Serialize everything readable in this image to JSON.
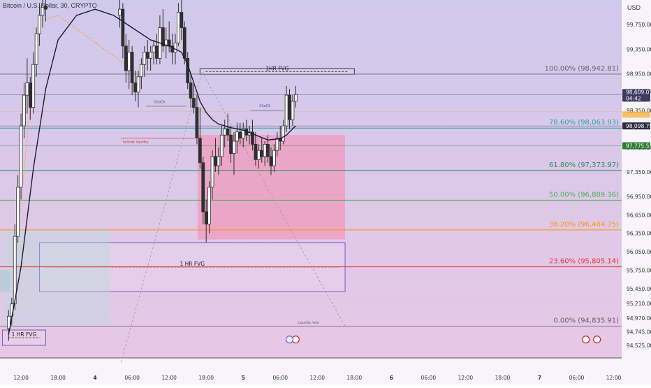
{
  "header": {
    "title": "Bitcoin / U.S. Dollar, 30, CRYPTO",
    "currency": "USD"
  },
  "chart_data": {
    "type": "candlestick",
    "title": "Bitcoin / U.S. Dollar, 30, CRYPTO",
    "y_axis_unit": "USD",
    "ylim": [
      94320,
      100150
    ],
    "grid": false,
    "y_ticks": [
      "99,750.00",
      "99,350.00",
      "98,950.00",
      "98,650.00",
      "98,350.00",
      "97,750.00",
      "97,350.00",
      "96,950.00",
      "96,650.00",
      "96,350.00",
      "96,050.00",
      "95,750.00",
      "95,450.00",
      "95,210.00",
      "94,970.00",
      "94,745.00",
      "94,525.00"
    ],
    "y_tick_values": [
      99750,
      99350,
      98950,
      98650,
      98350,
      97750,
      97350,
      96950,
      96650,
      96350,
      96050,
      95750,
      95450,
      95210,
      94970,
      94745,
      94525
    ],
    "x_ticks": [
      "12:00",
      "18:00",
      "4",
      "06:00",
      "12:00",
      "18:00",
      "5",
      "06:00",
      "12:00",
      "18:00",
      "6",
      "06:00",
      "12:00",
      "18:00",
      "7",
      "06:00",
      "12:00"
    ],
    "x_tick_hours": [
      12,
      18,
      24,
      30,
      36,
      42,
      48,
      54,
      60,
      66,
      72,
      78,
      84,
      90,
      96,
      102,
      108
    ],
    "fib_levels": [
      {
        "pct": "100.00%",
        "price": "98,942.81",
        "value": 98942.81,
        "color": "#7a7a88"
      },
      {
        "pct": "78.60%",
        "price": "98,063.93",
        "value": 98063.93,
        "color": "#26a69a"
      },
      {
        "pct": "61.80%",
        "price": "97,373.97",
        "value": 97373.97,
        "color": "#2e8b57"
      },
      {
        "pct": "50.00%",
        "price": "96,889.36",
        "value": 96889.36,
        "color": "#4caf50"
      },
      {
        "pct": "38.20%",
        "price": "96,404.75",
        "value": 96404.75,
        "color": "#ff9800"
      },
      {
        "pct": "23.60%",
        "price": "95,805.14",
        "value": 95805.14,
        "color": "#e53935"
      },
      {
        "pct": "0.00%",
        "price": "94,835.91",
        "value": 94835.91,
        "color": "#7a7a88"
      }
    ],
    "price_badges": [
      {
        "line1": "98,609.01",
        "line2": "04:42",
        "value": 98609.01,
        "color": "#3d3a60"
      },
      {
        "line1": "98,098.79",
        "line2": "",
        "value": 98098.79,
        "color": "#2a2a3e"
      },
      {
        "line1": "97,775.53",
        "line2": "",
        "value": 97775.53,
        "color": "#2e7d32"
      }
    ],
    "annotations": [
      "1HR FVG",
      "1 HR FVG",
      "1 HR FVG",
      "ChoCh",
      "ChoCh",
      "Sellside liquidity",
      "Liquidity Void"
    ],
    "candles": [
      {
        "t": 10.0,
        "o": 94800,
        "h": 95100,
        "l": 94600,
        "c": 95000
      },
      {
        "t": 10.5,
        "o": 95000,
        "h": 95300,
        "l": 94850,
        "c": 95200
      },
      {
        "t": 11.0,
        "o": 95200,
        "h": 96500,
        "l": 95100,
        "c": 96300
      },
      {
        "t": 11.5,
        "o": 96300,
        "h": 97300,
        "l": 96200,
        "c": 97100
      },
      {
        "t": 12.0,
        "o": 97100,
        "h": 98300,
        "l": 96900,
        "c": 98100
      },
      {
        "t": 12.5,
        "o": 98100,
        "h": 98800,
        "l": 97900,
        "c": 98600
      },
      {
        "t": 13.0,
        "o": 98600,
        "h": 99200,
        "l": 98300,
        "c": 98800
      },
      {
        "t": 13.5,
        "o": 98800,
        "h": 98900,
        "l": 98200,
        "c": 98400
      },
      {
        "t": 14.0,
        "o": 98400,
        "h": 99300,
        "l": 98300,
        "c": 99100
      },
      {
        "t": 14.5,
        "o": 99100,
        "h": 99700,
        "l": 98900,
        "c": 99600
      },
      {
        "t": 15.0,
        "o": 99600,
        "h": 100100,
        "l": 99400,
        "c": 99900
      },
      {
        "t": 15.5,
        "o": 99900,
        "h": 100150,
        "l": 99700,
        "c": 100050
      },
      {
        "t": 16.0,
        "o": 100050,
        "h": 100150,
        "l": 99800,
        "c": 100000
      },
      {
        "t": 28.0,
        "o": 99900,
        "h": 100150,
        "l": 99700,
        "c": 100000
      },
      {
        "t": 28.5,
        "o": 100000,
        "h": 100100,
        "l": 99200,
        "c": 99400
      },
      {
        "t": 29.0,
        "o": 99400,
        "h": 99600,
        "l": 98800,
        "c": 99000
      },
      {
        "t": 29.5,
        "o": 99000,
        "h": 99500,
        "l": 98700,
        "c": 99300
      },
      {
        "t": 30.0,
        "o": 99300,
        "h": 99400,
        "l": 98600,
        "c": 98800
      },
      {
        "t": 30.5,
        "o": 98800,
        "h": 99000,
        "l": 98500,
        "c": 98650
      },
      {
        "t": 31.0,
        "o": 98650,
        "h": 99000,
        "l": 98400,
        "c": 98900
      },
      {
        "t": 31.5,
        "o": 98900,
        "h": 99200,
        "l": 98700,
        "c": 99100
      },
      {
        "t": 32.0,
        "o": 99100,
        "h": 99400,
        "l": 98900,
        "c": 99300
      },
      {
        "t": 32.5,
        "o": 99300,
        "h": 99500,
        "l": 99000,
        "c": 99200
      },
      {
        "t": 33.0,
        "o": 99200,
        "h": 99400,
        "l": 99000,
        "c": 99300
      },
      {
        "t": 33.5,
        "o": 99300,
        "h": 99500,
        "l": 99100,
        "c": 99400
      },
      {
        "t": 34.0,
        "o": 99400,
        "h": 99600,
        "l": 99100,
        "c": 99200
      },
      {
        "t": 34.5,
        "o": 99200,
        "h": 99900,
        "l": 99100,
        "c": 99700
      },
      {
        "t": 35.0,
        "o": 99700,
        "h": 100000,
        "l": 99300,
        "c": 99400
      },
      {
        "t": 35.5,
        "o": 99400,
        "h": 99700,
        "l": 99200,
        "c": 99500
      },
      {
        "t": 36.0,
        "o": 99500,
        "h": 99800,
        "l": 99300,
        "c": 99400
      },
      {
        "t": 36.5,
        "o": 99400,
        "h": 99600,
        "l": 99100,
        "c": 99300
      },
      {
        "t": 37.0,
        "o": 99300,
        "h": 99600,
        "l": 99100,
        "c": 99450
      },
      {
        "t": 37.5,
        "o": 99450,
        "h": 100100,
        "l": 99400,
        "c": 99950
      },
      {
        "t": 38.0,
        "o": 99950,
        "h": 100150,
        "l": 99500,
        "c": 99700
      },
      {
        "t": 38.5,
        "o": 99700,
        "h": 99800,
        "l": 99100,
        "c": 99200
      },
      {
        "t": 39.0,
        "o": 99200,
        "h": 99300,
        "l": 98700,
        "c": 98800
      },
      {
        "t": 39.5,
        "o": 98800,
        "h": 98950,
        "l": 98400,
        "c": 98550
      },
      {
        "t": 40.0,
        "o": 98550,
        "h": 98800,
        "l": 98300,
        "c": 98400
      },
      {
        "t": 40.5,
        "o": 98400,
        "h": 98600,
        "l": 97800,
        "c": 97900
      },
      {
        "t": 41.0,
        "o": 97900,
        "h": 98400,
        "l": 97400,
        "c": 97500
      },
      {
        "t": 41.5,
        "o": 97500,
        "h": 97600,
        "l": 96500,
        "c": 96700
      },
      {
        "t": 42.0,
        "o": 96700,
        "h": 96900,
        "l": 96200,
        "c": 96500
      },
      {
        "t": 42.5,
        "o": 96500,
        "h": 97200,
        "l": 96350,
        "c": 97100
      },
      {
        "t": 43.0,
        "o": 97100,
        "h": 97700,
        "l": 96900,
        "c": 97600
      },
      {
        "t": 43.5,
        "o": 97600,
        "h": 97900,
        "l": 97350,
        "c": 97450
      },
      {
        "t": 44.0,
        "o": 97450,
        "h": 97750,
        "l": 97300,
        "c": 97600
      },
      {
        "t": 44.5,
        "o": 97600,
        "h": 98100,
        "l": 97450,
        "c": 97950
      },
      {
        "t": 45.0,
        "o": 97950,
        "h": 98200,
        "l": 97750,
        "c": 98050
      },
      {
        "t": 45.5,
        "o": 98050,
        "h": 98300,
        "l": 97850,
        "c": 97950
      },
      {
        "t": 46.0,
        "o": 97950,
        "h": 98100,
        "l": 97500,
        "c": 97650
      },
      {
        "t": 46.5,
        "o": 97650,
        "h": 98000,
        "l": 97300,
        "c": 97850
      },
      {
        "t": 47.0,
        "o": 97850,
        "h": 98150,
        "l": 97650,
        "c": 98000
      },
      {
        "t": 47.5,
        "o": 98000,
        "h": 98150,
        "l": 97800,
        "c": 97900
      },
      {
        "t": 48.0,
        "o": 97900,
        "h": 98150,
        "l": 97750,
        "c": 98050
      },
      {
        "t": 48.5,
        "o": 98050,
        "h": 98200,
        "l": 97850,
        "c": 97950
      },
      {
        "t": 49.0,
        "o": 97950,
        "h": 98100,
        "l": 97800,
        "c": 98000
      },
      {
        "t": 49.5,
        "o": 98000,
        "h": 98200,
        "l": 97700,
        "c": 97800
      },
      {
        "t": 50.0,
        "o": 97800,
        "h": 98000,
        "l": 97450,
        "c": 97550
      },
      {
        "t": 50.5,
        "o": 97550,
        "h": 97800,
        "l": 97400,
        "c": 97700
      },
      {
        "t": 51.0,
        "o": 97700,
        "h": 97900,
        "l": 97500,
        "c": 97600
      },
      {
        "t": 51.5,
        "o": 97600,
        "h": 97850,
        "l": 97450,
        "c": 97800
      },
      {
        "t": 52.0,
        "o": 97800,
        "h": 97950,
        "l": 97500,
        "c": 97600
      },
      {
        "t": 52.5,
        "o": 97600,
        "h": 97750,
        "l": 97300,
        "c": 97450
      },
      {
        "t": 53.0,
        "o": 97450,
        "h": 97800,
        "l": 97350,
        "c": 97700
      },
      {
        "t": 53.5,
        "o": 97700,
        "h": 98000,
        "l": 97600,
        "c": 97900
      },
      {
        "t": 54.0,
        "o": 97900,
        "h": 98100,
        "l": 97700,
        "c": 97850
      },
      {
        "t": 54.5,
        "o": 97850,
        "h": 98200,
        "l": 97800,
        "c": 98100
      },
      {
        "t": 55.0,
        "o": 98100,
        "h": 98750,
        "l": 98000,
        "c": 98600
      },
      {
        "t": 55.5,
        "o": 98600,
        "h": 98700,
        "l": 98050,
        "c": 98200
      },
      {
        "t": 56.0,
        "o": 98200,
        "h": 98600,
        "l": 98100,
        "c": 98500
      },
      {
        "t": 56.5,
        "o": 98500,
        "h": 98750,
        "l": 98400,
        "c": 98609.01
      }
    ],
    "ma": [
      [
        10,
        94700
      ],
      [
        12,
        95800
      ],
      [
        14,
        97400
      ],
      [
        16,
        98700
      ],
      [
        18,
        99500
      ],
      [
        21,
        99900
      ],
      [
        24,
        100000
      ],
      [
        27,
        99900
      ],
      [
        30,
        99700
      ],
      [
        33,
        99500
      ],
      [
        36,
        99400
      ],
      [
        38,
        99300
      ],
      [
        39,
        99100
      ],
      [
        40,
        98800
      ],
      [
        41,
        98500
      ],
      [
        42,
        98320
      ],
      [
        43,
        98200
      ],
      [
        44,
        98130
      ],
      [
        46,
        98070
      ],
      [
        48,
        98030
      ],
      [
        50,
        97950
      ],
      [
        52,
        97870
      ],
      [
        54,
        97890
      ],
      [
        55,
        97950
      ],
      [
        56,
        98050
      ],
      [
        56.5,
        98100
      ]
    ],
    "zones": [
      {
        "label": "1HR FVG",
        "x0": 41.0,
        "x1": 66.0,
        "y0": 98940,
        "y1": 99030,
        "fill": "none",
        "stroke": "#333333"
      },
      {
        "label": "1 HR FVG",
        "x0": 15.0,
        "x1": 64.5,
        "y0": 95400,
        "y1": 96200,
        "fill": "none",
        "stroke": "#7e57c2"
      },
      {
        "label": "1 HR FVG",
        "x0": 9.0,
        "x1": 16.0,
        "y0": 94525,
        "y1": 94775,
        "fill": "none",
        "stroke": "#7e57c2"
      },
      {
        "label": "Liquidity Void",
        "x0": 40.6,
        "x1": 64.5,
        "y0": 96250,
        "y1": 97950,
        "fill": "#f48fb1",
        "stroke": "none"
      }
    ]
  }
}
